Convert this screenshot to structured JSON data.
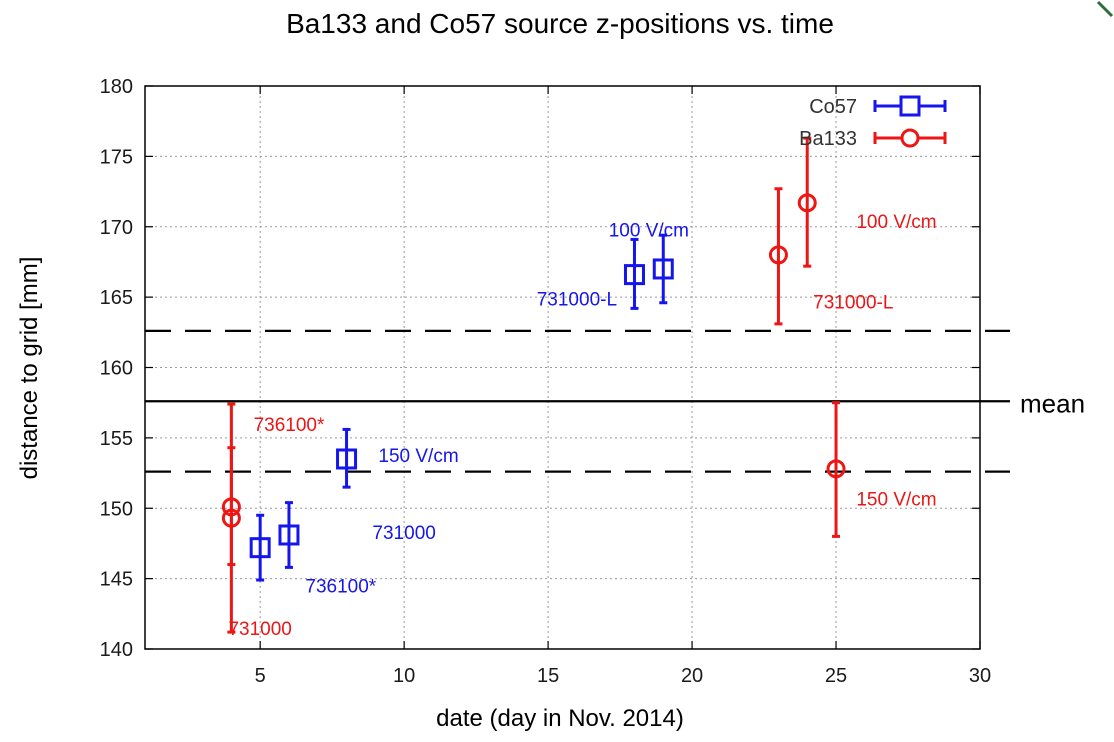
{
  "chart_data": {
    "type": "scatter",
    "title": "Ba133 and Co57 source z-positions vs. time",
    "xlabel": "date (day in Nov. 2014)",
    "ylabel": "distance to grid [mm]",
    "xlim": [
      1,
      30
    ],
    "ylim": [
      140,
      180
    ],
    "x_ticks": [
      5,
      10,
      15,
      20,
      25,
      30
    ],
    "y_ticks": [
      140,
      145,
      150,
      155,
      160,
      165,
      170,
      175,
      180
    ],
    "grid": true,
    "legend_position": "top-right",
    "colors": {
      "Co57": "#1515ee",
      "Ba133": "#ee1515"
    },
    "series": [
      {
        "name": "Co57",
        "marker": "square",
        "points": [
          {
            "x": 5,
            "y": 147.2,
            "yerr_low": 144.9,
            "yerr_high": 149.5
          },
          {
            "x": 6,
            "y": 148.1,
            "yerr_low": 145.8,
            "yerr_high": 150.4
          },
          {
            "x": 8,
            "y": 153.5,
            "yerr_low": 151.5,
            "yerr_high": 155.6
          },
          {
            "x": 18,
            "y": 166.6,
            "yerr_low": 164.2,
            "yerr_high": 169.1
          },
          {
            "x": 19,
            "y": 167.0,
            "yerr_low": 164.6,
            "yerr_high": 169.4
          }
        ]
      },
      {
        "name": "Ba133",
        "marker": "circle",
        "points": [
          {
            "x": 4,
            "y": 150.1,
            "yerr_low": 146.0,
            "yerr_high": 154.3
          },
          {
            "x": 4,
            "y": 149.3,
            "yerr_low": 141.2,
            "yerr_high": 157.4
          },
          {
            "x": 23,
            "y": 168.0,
            "yerr_low": 163.1,
            "yerr_high": 172.7
          },
          {
            "x": 24,
            "y": 171.7,
            "yerr_low": 167.2,
            "yerr_high": 176.3
          },
          {
            "x": 25,
            "y": 152.8,
            "yerr_low": 148.0,
            "yerr_high": 157.5
          }
        ]
      }
    ],
    "reference_lines": [
      {
        "y": 157.6,
        "style": "solid",
        "label": "mean"
      },
      {
        "y": 162.6,
        "style": "dashed",
        "label": ""
      },
      {
        "y": 152.6,
        "style": "dashed",
        "label": ""
      }
    ],
    "annotations": [
      {
        "text": "100 V/cm",
        "x": 18.5,
        "y": 169.3,
        "series": "Co57"
      },
      {
        "text": "731000-L",
        "x": 16.0,
        "y": 164.4,
        "series": "Co57"
      },
      {
        "text": "150 V/cm",
        "x": 10.5,
        "y": 153.3,
        "series": "Co57"
      },
      {
        "text": "731000",
        "x": 10.0,
        "y": 147.8,
        "series": "Co57"
      },
      {
        "text": "736100*",
        "x": 7.8,
        "y": 144.0,
        "series": "Co57"
      },
      {
        "text": "100 V/cm",
        "x": 27.1,
        "y": 169.9,
        "series": "Ba133"
      },
      {
        "text": "731000-L",
        "x": 25.6,
        "y": 164.2,
        "series": "Ba133"
      },
      {
        "text": "736100*",
        "x": 6.0,
        "y": 155.5,
        "series": "Ba133"
      },
      {
        "text": "150 V/cm",
        "x": 27.1,
        "y": 150.2,
        "series": "Ba133"
      },
      {
        "text": "731000",
        "x": 5.0,
        "y": 141.0,
        "series": "Ba133"
      }
    ]
  }
}
